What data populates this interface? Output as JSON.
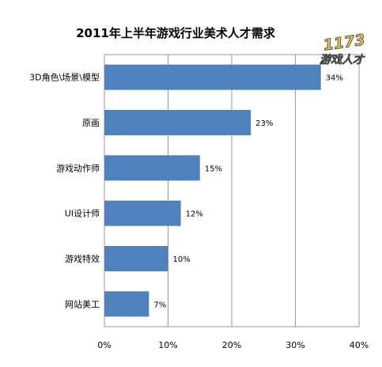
{
  "chart_data": {
    "type": "bar",
    "orientation": "horizontal",
    "title": "2011年上半年游戏行业美术人才需求",
    "categories": [
      "3D角色\\场景\\模型",
      "原画",
      "游戏动作师",
      "UI设计师",
      "游戏特效",
      "网站美工"
    ],
    "values": [
      34,
      23,
      15,
      12,
      10,
      7
    ],
    "value_labels": [
      "34%",
      "23%",
      "15%",
      "12%",
      "10%",
      "7%"
    ],
    "xlim": [
      0,
      40
    ],
    "x_ticks": [
      "0%",
      "10%",
      "20%",
      "30%",
      "40%"
    ],
    "grid": true,
    "legend": "none",
    "bar_color": "#4f81bd"
  },
  "watermark": {
    "number": "1173",
    "text": "游戏人才"
  }
}
